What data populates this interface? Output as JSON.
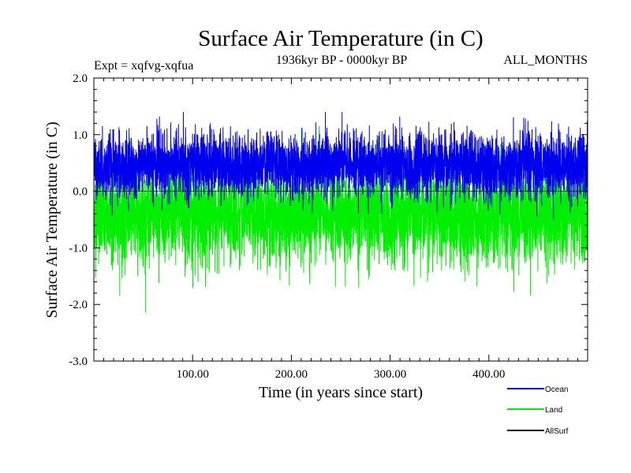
{
  "chart_data": {
    "type": "line",
    "title": "Surface Air Temperature (in C)",
    "subtitle_left": "Expt = xqfvg-xqfua",
    "subtitle_center": "1936kyr BP - 0000kyr BP",
    "subtitle_right": "ALL_MONTHS",
    "xlabel": "Time (in years since start)",
    "ylabel": "Surface Air Temperature (in C)",
    "xlim": [
      0,
      500
    ],
    "ylim": [
      -3.0,
      2.0
    ],
    "xticks": [
      100,
      200,
      300,
      400
    ],
    "xtick_labels": [
      "100.00",
      "200.00",
      "300.00",
      "400.00"
    ],
    "yticks": [
      -3.0,
      -2.0,
      -1.0,
      0.0,
      1.0,
      2.0
    ],
    "ytick_labels": [
      "-3.0",
      "-2.0",
      "-1.0",
      "0.0",
      "1.0",
      "2.0"
    ],
    "series": [
      {
        "name": "Ocean",
        "color": "#0000ee",
        "mean": 0.45,
        "spread": 0.28,
        "min_approx": -0.6,
        "max_approx": 1.4,
        "n_points": 5000
      },
      {
        "name": "Land",
        "color": "#00ee00",
        "mean": -0.42,
        "spread": 0.42,
        "min_approx": -2.3,
        "max_approx": 1.3,
        "n_points": 5000
      },
      {
        "name": "AllSurf",
        "color": "#000000",
        "mean": 0.45,
        "spread": 0.28,
        "min_approx": -0.6,
        "max_approx": 1.4,
        "n_points": 5000
      }
    ],
    "legend_position": "bottom-right"
  }
}
